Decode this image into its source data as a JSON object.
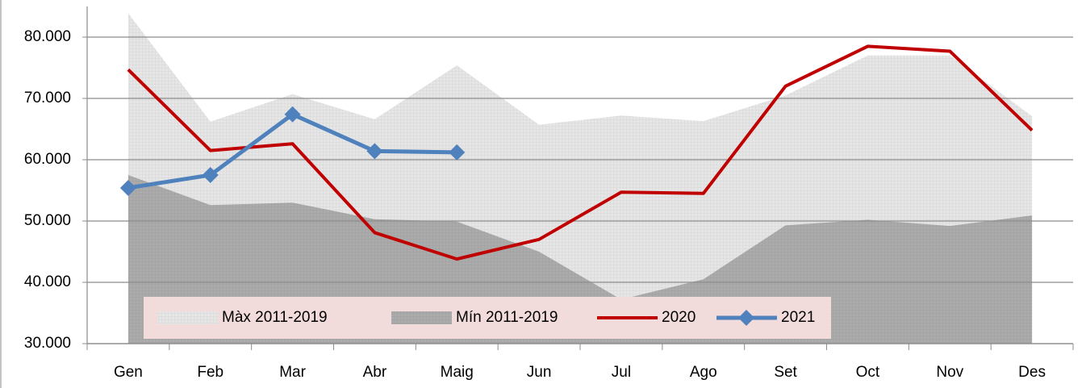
{
  "chart_data": {
    "type": "line",
    "categories": [
      "Gen",
      "Feb",
      "Mar",
      "Abr",
      "Maig",
      "Jun",
      "Jul",
      "Ago",
      "Set",
      "Oct",
      "Nov",
      "Des"
    ],
    "series": [
      {
        "name": "Màx 2011-2019",
        "kind": "area",
        "color": "#e6e6e6",
        "values": [
          83900,
          66200,
          70700,
          66600,
          75400,
          65700,
          67200,
          66300,
          70500,
          77000,
          77000,
          67100
        ]
      },
      {
        "name": "Mín 2011-2019",
        "kind": "area",
        "color": "#ababab",
        "values": [
          57500,
          52600,
          53000,
          50300,
          49900,
          45000,
          37200,
          40500,
          49300,
          50200,
          49200,
          50900
        ]
      },
      {
        "name": "2020",
        "kind": "line",
        "color": "#c00000",
        "values": [
          74700,
          61500,
          62600,
          48100,
          43800,
          47000,
          54700,
          54500,
          72000,
          78500,
          77700,
          64800
        ]
      },
      {
        "name": "2021",
        "kind": "line",
        "marker": "diamond",
        "color": "#4f81bd",
        "values": [
          55400,
          57500,
          67400,
          61400,
          61200,
          null,
          null,
          null,
          null,
          null,
          null,
          null
        ]
      }
    ],
    "ylim": [
      30000,
      85000
    ],
    "yticks": [
      {
        "value": 30000,
        "label": "30.000"
      },
      {
        "value": 40000,
        "label": "40.000"
      },
      {
        "value": 50000,
        "label": "50.000"
      },
      {
        "value": 60000,
        "label": "60.000"
      },
      {
        "value": 70000,
        "label": "70.000"
      },
      {
        "value": 80000,
        "label": "80.000"
      }
    ],
    "grid": true,
    "legend": "bottom"
  }
}
